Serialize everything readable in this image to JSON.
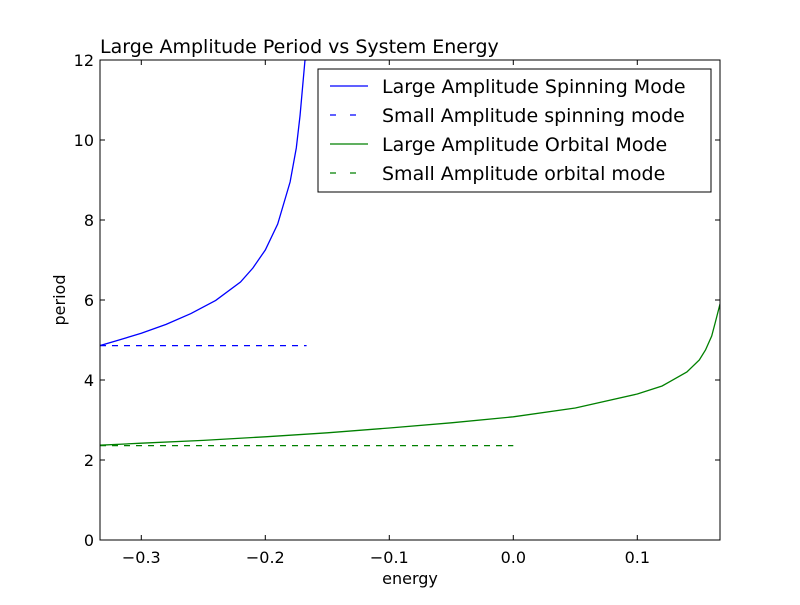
{
  "chart_data": {
    "type": "line",
    "title": "Large Amplitude Period vs System Energy",
    "xlabel": "energy",
    "ylabel": "period",
    "xlim": [
      -0.3333,
      0.1667
    ],
    "ylim": [
      0,
      12
    ],
    "x_ticks": [
      -0.3,
      -0.2,
      -0.1,
      0.0,
      0.1
    ],
    "x_tick_labels": [
      "−0.3",
      "−0.2",
      "−0.1",
      "0.0",
      "0.1"
    ],
    "y_ticks": [
      0,
      2,
      4,
      6,
      8,
      10,
      12
    ],
    "y_tick_labels": [
      "0",
      "2",
      "4",
      "6",
      "8",
      "10",
      "12"
    ],
    "grid": false,
    "legend_position": "top-right",
    "series": [
      {
        "name": "Large Amplitude Spinning Mode",
        "color": "#0000ff",
        "style": "solid",
        "x": [
          -0.3333,
          -0.32,
          -0.3,
          -0.28,
          -0.26,
          -0.24,
          -0.22,
          -0.21,
          -0.2,
          -0.19,
          -0.18,
          -0.175,
          -0.172,
          -0.17,
          -0.168,
          -0.1667
        ],
        "y": [
          4.86,
          4.98,
          5.17,
          5.39,
          5.66,
          5.99,
          6.45,
          6.8,
          7.25,
          7.9,
          8.95,
          9.8,
          10.6,
          11.3,
          12.0,
          12.0
        ]
      },
      {
        "name": "Small Amplitude spinning mode",
        "color": "#0000ff",
        "style": "dashed",
        "x": [
          -0.3333,
          -0.1667
        ],
        "y": [
          4.86,
          4.86
        ]
      },
      {
        "name": "Large Amplitude Orbital Mode",
        "color": "#008000",
        "style": "solid",
        "x": [
          -0.3333,
          -0.3,
          -0.25,
          -0.2,
          -0.15,
          -0.1,
          -0.05,
          0.0,
          0.05,
          0.1,
          0.12,
          0.14,
          0.15,
          0.155,
          0.16,
          0.163,
          0.1667
        ],
        "y": [
          2.37,
          2.42,
          2.49,
          2.58,
          2.68,
          2.8,
          2.93,
          3.08,
          3.3,
          3.65,
          3.85,
          4.2,
          4.5,
          4.75,
          5.1,
          5.45,
          5.9
        ]
      },
      {
        "name": "Small Amplitude orbital mode",
        "color": "#008000",
        "style": "dashed",
        "x": [
          -0.3333,
          0.0
        ],
        "y": [
          2.36,
          2.36
        ]
      }
    ]
  }
}
